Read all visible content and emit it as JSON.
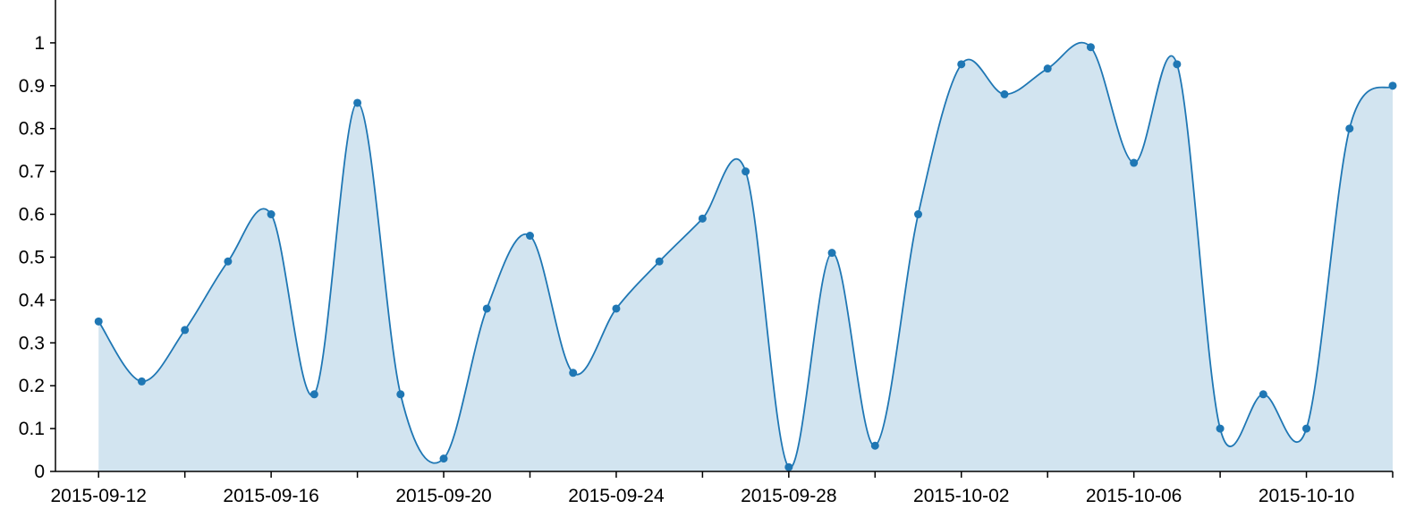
{
  "chart_data": {
    "type": "area",
    "x_type": "date",
    "x": [
      "2015-09-12",
      "2015-09-13",
      "2015-09-14",
      "2015-09-15",
      "2015-09-16",
      "2015-09-17",
      "2015-09-18",
      "2015-09-19",
      "2015-09-20",
      "2015-09-21",
      "2015-09-22",
      "2015-09-23",
      "2015-09-24",
      "2015-09-25",
      "2015-09-26",
      "2015-09-27",
      "2015-09-28",
      "2015-09-29",
      "2015-09-30",
      "2015-10-01",
      "2015-10-02",
      "2015-10-03",
      "2015-10-04",
      "2015-10-05",
      "2015-10-06",
      "2015-10-07",
      "2015-10-08",
      "2015-10-09",
      "2015-10-10",
      "2015-10-11",
      "2015-10-12"
    ],
    "series": [
      {
        "values": [
          0.35,
          0.21,
          0.33,
          0.49,
          0.6,
          0.18,
          0.86,
          0.18,
          0.03,
          0.38,
          0.55,
          0.23,
          0.38,
          0.49,
          0.59,
          0.7,
          0.01,
          0.51,
          0.06,
          0.6,
          0.95,
          0.88,
          0.94,
          0.99,
          0.72,
          0.95,
          0.1,
          0.18,
          0.1,
          0.8,
          0.9
        ],
        "color": "#1f77b4"
      }
    ],
    "xlim": [
      "2015-09-11",
      "2015-10-12"
    ],
    "ylim": [
      0,
      1.1
    ],
    "x_tick_labels": [
      "2015-09-12",
      "2015-09-16",
      "2015-09-20",
      "2015-09-24",
      "2015-09-28",
      "2015-10-02",
      "2015-10-06",
      "2015-10-10"
    ],
    "y_tick_labels": [
      "0",
      "0.1",
      "0.2",
      "0.3",
      "0.4",
      "0.5",
      "0.6",
      "0.7",
      "0.8",
      "0.9",
      "1"
    ],
    "curve": "smooth",
    "markers": true,
    "grid": false,
    "title": "",
    "xlabel": "",
    "ylabel": ""
  }
}
